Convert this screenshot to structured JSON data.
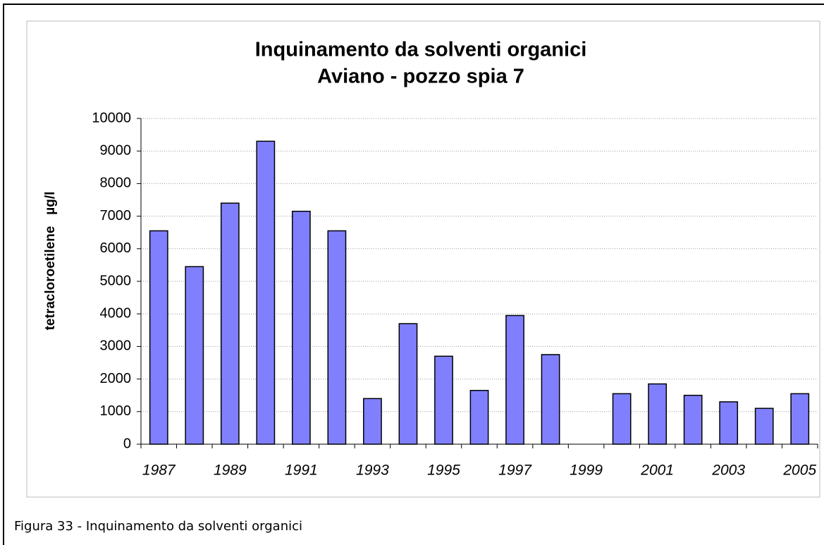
{
  "chart_data": {
    "type": "bar",
    "title": "Inquinamento da solventi organici",
    "subtitle": "Aviano - pozzo spia 7",
    "y_label": "tetracloroetilene   µg/l",
    "caption": "Figura 33 - Inquinamento da solventi organici",
    "categories": [
      "1987",
      null,
      "1989",
      null,
      "1991",
      null,
      "1993",
      null,
      "1995",
      null,
      "1997",
      null,
      "1999",
      null,
      "2001",
      null,
      "2003",
      null,
      "2005"
    ],
    "values": [
      6550,
      5450,
      7400,
      9300,
      7150,
      6550,
      1400,
      3700,
      2700,
      1650,
      3950,
      2750,
      null,
      1550,
      1850,
      1500,
      1300,
      1100,
      1550
    ],
    "color": "#8080ff",
    "ylim": [
      0,
      10000
    ],
    "yticks": [
      0,
      1000,
      2000,
      3000,
      4000,
      5000,
      6000,
      7000,
      8000,
      9000,
      10000
    ],
    "grid": true
  }
}
